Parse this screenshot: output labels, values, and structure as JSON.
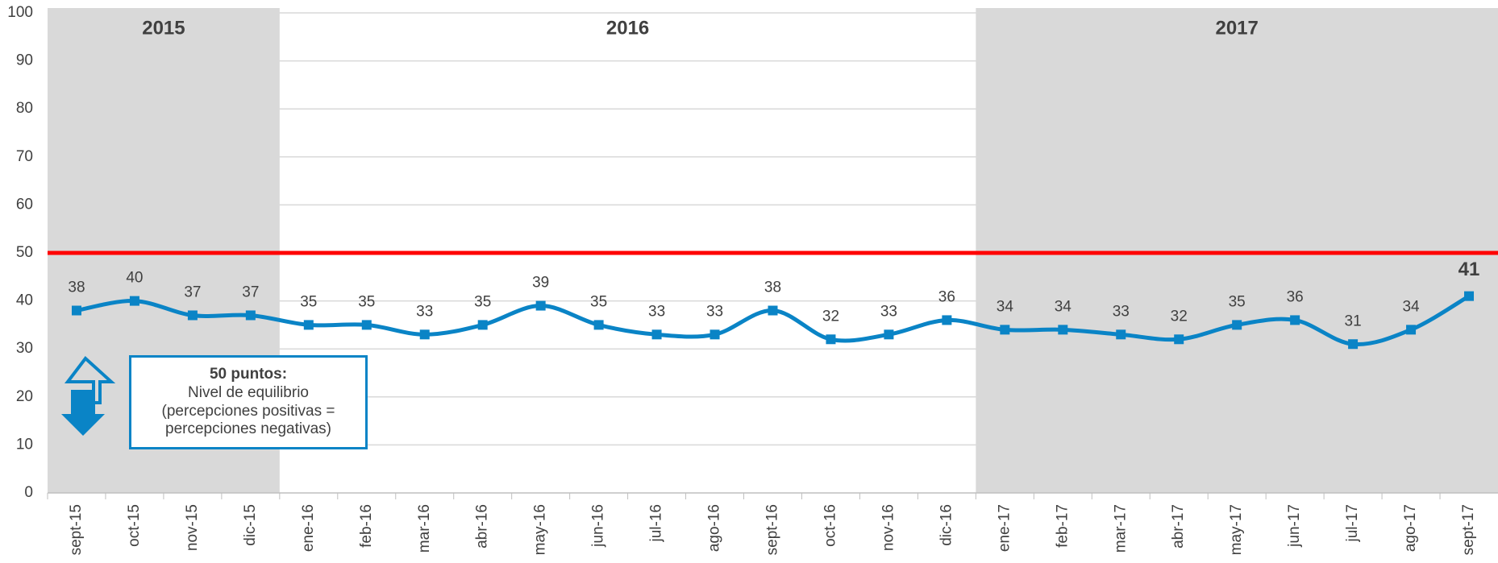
{
  "chart_data": {
    "type": "line",
    "categories": [
      "sept-15",
      "oct-15",
      "nov-15",
      "dic-15",
      "ene-16",
      "feb-16",
      "mar-16",
      "abr-16",
      "may-16",
      "jun-16",
      "jul-16",
      "ago-16",
      "sept-16",
      "oct-16",
      "nov-16",
      "dic-16",
      "ene-17",
      "feb-17",
      "mar-17",
      "abr-17",
      "may-17",
      "jun-17",
      "jul-17",
      "ago-17",
      "sept-17"
    ],
    "series": [
      {
        "color": "#0a84c6",
        "values": [
          38,
          40,
          37,
          37,
          35,
          35,
          33,
          35,
          39,
          35,
          33,
          33,
          38,
          32,
          33,
          36,
          34,
          34,
          33,
          32,
          35,
          36,
          31,
          34,
          41
        ]
      }
    ],
    "ylim": [
      0,
      100
    ],
    "yticks": [
      0,
      10,
      20,
      30,
      40,
      50,
      60,
      70,
      80,
      90,
      100
    ],
    "grid": true,
    "periods": [
      {
        "label": "2015",
        "from": "sept-15",
        "to": "dic-15",
        "shaded": true
      },
      {
        "label": "2016",
        "from": "ene-16",
        "to": "dic-16",
        "shaded": false
      },
      {
        "label": "2017",
        "from": "ene-17",
        "to": "sept-17",
        "shaded": true
      }
    ],
    "reference_line": {
      "value": 50,
      "color": "#ff0000"
    },
    "annotation": {
      "title": "50 puntos:",
      "lines": [
        "Nivel de equilibrio",
        "(percepciones positivas =",
        "percepciones negativas)"
      ]
    }
  }
}
